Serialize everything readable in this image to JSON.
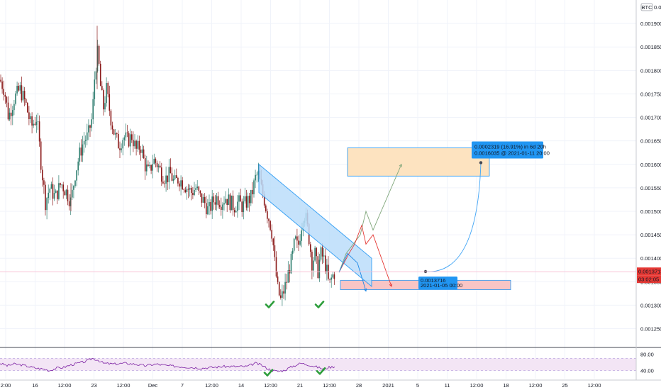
{
  "header": {
    "currency_badge": "BTC",
    "top_tick": "0.0"
  },
  "colors": {
    "up": "#2e7d6e",
    "down": "#8b1a1a",
    "trendline": "#8fb8e6",
    "target_zone": "#fde3c0",
    "support_zone": "#f9c5c5",
    "callout": "#2196f3",
    "rsi_line": "#7b1fa2",
    "rsi_band": "#f3e5f5",
    "price_line": "#e53935",
    "check": "#2e9e3c"
  },
  "chart_data": {
    "type": "candlestick",
    "symbol_currency": "BTC",
    "y_axis": {
      "ticks": [
        "0.0019000",
        "0.0018500",
        "0.0018000",
        "0.0017500",
        "0.0017000",
        "0.0016500",
        "0.0016000",
        "0.0015500",
        "0.0015000",
        "0.0014500",
        "0.0014000",
        "0.0013500",
        "0.0013000",
        "0.0012500"
      ],
      "range": [
        0.00121,
        0.00195
      ]
    },
    "x_axis": {
      "ticks": [
        "2:00",
        "16",
        "12:00",
        "23",
        "12:00",
        "Dec",
        "7",
        "12:00",
        "14",
        "12:00",
        "21",
        "12:00",
        "28",
        "2021",
        "5",
        "11",
        "12:00",
        "18",
        "12:00",
        "25",
        "12:00"
      ]
    },
    "current_price": "0.0013713",
    "countdown": "03:02:05",
    "path_points": [
      [
        0,
        0.00178
      ],
      [
        6,
        0.00176
      ],
      [
        12,
        0.0017
      ],
      [
        20,
        0.00174
      ],
      [
        28,
        0.00176
      ],
      [
        36,
        0.00173
      ],
      [
        44,
        0.00168
      ],
      [
        52,
        0.0017
      ],
      [
        58,
        0.0016
      ],
      [
        64,
        0.00152
      ],
      [
        70,
        0.00155
      ],
      [
        78,
        0.00153
      ],
      [
        86,
        0.00156
      ],
      [
        94,
        0.00154
      ],
      [
        100,
        0.00152
      ],
      [
        106,
        0.00158
      ],
      [
        112,
        0.00162
      ],
      [
        118,
        0.00165
      ],
      [
        124,
        0.00166
      ],
      [
        130,
        0.0017
      ],
      [
        134,
        0.0018
      ],
      [
        138,
        0.00184
      ],
      [
        142,
        0.00176
      ],
      [
        146,
        0.00172
      ],
      [
        150,
        0.00176
      ],
      [
        156,
        0.0017
      ],
      [
        162,
        0.00166
      ],
      [
        168,
        0.00164
      ],
      [
        174,
        0.00166
      ],
      [
        180,
        0.00165
      ],
      [
        186,
        0.00166
      ],
      [
        192,
        0.00163
      ],
      [
        198,
        0.00164
      ],
      [
        204,
        0.0016
      ],
      [
        210,
        0.00158
      ],
      [
        216,
        0.00161
      ],
      [
        222,
        0.0016
      ],
      [
        228,
        0.00158
      ],
      [
        234,
        0.00157
      ],
      [
        240,
        0.00158
      ],
      [
        246,
        0.00156
      ],
      [
        252,
        0.00157
      ],
      [
        258,
        0.00156
      ],
      [
        264,
        0.00155
      ],
      [
        270,
        0.00154
      ],
      [
        276,
        0.00155
      ],
      [
        282,
        0.00153
      ],
      [
        288,
        0.00152
      ],
      [
        294,
        0.0015
      ],
      [
        300,
        0.00152
      ],
      [
        306,
        0.00153
      ],
      [
        312,
        0.00152
      ],
      [
        318,
        0.00153
      ],
      [
        324,
        0.00152
      ],
      [
        330,
        0.00151
      ],
      [
        336,
        0.00152
      ],
      [
        342,
        0.00151
      ],
      [
        348,
        0.00152
      ],
      [
        354,
        0.00153
      ],
      [
        360,
        0.00157
      ],
      [
        364,
        0.00158
      ],
      [
        368,
        0.00155
      ],
      [
        372,
        0.00153
      ],
      [
        376,
        0.0015
      ],
      [
        380,
        0.00148
      ],
      [
        384,
        0.00145
      ],
      [
        388,
        0.00138
      ],
      [
        392,
        0.00133
      ],
      [
        396,
        0.00131
      ],
      [
        400,
        0.00133
      ],
      [
        404,
        0.00135
      ],
      [
        408,
        0.00138
      ],
      [
        412,
        0.0014
      ],
      [
        416,
        0.00144
      ],
      [
        420,
        0.00142
      ],
      [
        424,
        0.00146
      ],
      [
        428,
        0.0015
      ],
      [
        432,
        0.00148
      ],
      [
        436,
        0.00144
      ],
      [
        440,
        0.00139
      ],
      [
        444,
        0.00141
      ],
      [
        448,
        0.00137
      ],
      [
        452,
        0.00141
      ],
      [
        456,
        0.0014
      ],
      [
        460,
        0.00138
      ],
      [
        464,
        0.00134
      ],
      [
        468,
        0.00136
      ],
      [
        472,
        0.00137
      ]
    ],
    "trendline_channel": {
      "from": [
        365,
        0.00157
      ],
      "to": [
        524,
        0.00137
      ],
      "thickness": 6e-05
    },
    "projections": {
      "green": [
        [
          478,
          0.00137
        ],
        [
          488,
          0.00141
        ],
        [
          498,
          0.00143
        ],
        [
          508,
          0.00145
        ],
        [
          516,
          0.0015
        ],
        [
          526,
          0.00146
        ],
        [
          566,
          0.0016
        ]
      ],
      "red": [
        [
          478,
          0.00137
        ],
        [
          492,
          0.00141
        ],
        [
          500,
          0.00143
        ],
        [
          510,
          0.00147
        ],
        [
          516,
          0.00143
        ],
        [
          526,
          0.00145
        ],
        [
          552,
          0.00134
        ]
      ],
      "blue": [
        [
          478,
          0.00137
        ],
        [
          490,
          0.00141
        ],
        [
          504,
          0.00139
        ],
        [
          516,
          0.00133
        ]
      ]
    },
    "zones": [
      {
        "name": "target",
        "x": [
          490,
          690
        ],
        "y": [
          0.001575,
          0.001635
        ]
      },
      {
        "name": "support",
        "x": [
          480,
          720
        ],
        "y": [
          0.001333,
          0.001353
        ]
      }
    ],
    "measure_start": {
      "x": 600,
      "y": 0.0013716,
      "label": "0.0013716",
      "date": "2021-01-05 00:00"
    },
    "measure_end": {
      "x": 678,
      "y": 0.0016035,
      "label1": "0.0002319 (16.91%) in 6d 20h",
      "label2": "0.0016035 @ 2021-01-11  20:00"
    },
    "checkmarks": [
      [
        380,
        0.0013
      ],
      [
        450,
        0.0013
      ]
    ],
    "rsi": {
      "ticks": [
        "80.00",
        "40.00"
      ],
      "band": [
        40,
        70
      ],
      "values": [
        [
          0,
          58
        ],
        [
          10,
          52
        ],
        [
          20,
          56
        ],
        [
          30,
          54
        ],
        [
          40,
          50
        ],
        [
          50,
          46
        ],
        [
          60,
          44
        ],
        [
          70,
          40
        ],
        [
          80,
          46
        ],
        [
          90,
          48
        ],
        [
          100,
          54
        ],
        [
          110,
          58
        ],
        [
          120,
          62
        ],
        [
          130,
          70
        ],
        [
          138,
          66
        ],
        [
          146,
          58
        ],
        [
          160,
          56
        ],
        [
          176,
          58
        ],
        [
          190,
          56
        ],
        [
          204,
          52
        ],
        [
          220,
          56
        ],
        [
          236,
          52
        ],
        [
          252,
          50
        ],
        [
          268,
          48
        ],
        [
          284,
          46
        ],
        [
          300,
          48
        ],
        [
          316,
          50
        ],
        [
          332,
          50
        ],
        [
          348,
          50
        ],
        [
          360,
          58
        ],
        [
          368,
          54
        ],
        [
          376,
          46
        ],
        [
          384,
          40
        ],
        [
          392,
          38
        ],
        [
          400,
          40
        ],
        [
          412,
          50
        ],
        [
          424,
          58
        ],
        [
          436,
          54
        ],
        [
          448,
          48
        ],
        [
          456,
          44
        ],
        [
          464,
          48
        ],
        [
          472,
          50
        ]
      ],
      "checkmarks": [
        [
          378,
          33
        ],
        [
          452,
          37
        ]
      ]
    }
  }
}
